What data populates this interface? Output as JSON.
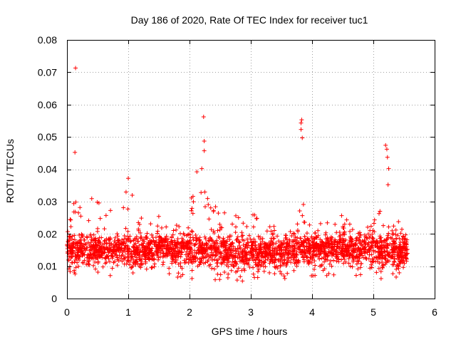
{
  "chart_data": {
    "type": "scatter",
    "title": "Day 186 of 2020, Rate Of TEC Index for receiver tuc1",
    "xlabel": "GPS time / hours",
    "ylabel": "ROTI / TECUs",
    "xlim": [
      0,
      6
    ],
    "ylim": [
      0,
      0.08
    ],
    "grid": true,
    "marker": "+",
    "series_color": "#ff0000",
    "xticks": [
      0,
      1,
      2,
      3,
      4,
      5,
      6
    ],
    "xtick_labels": [
      "0",
      "1",
      "2",
      "3",
      "4",
      "5",
      "6"
    ],
    "yticks": [
      0,
      0.01,
      0.02,
      0.03,
      0.04,
      0.05,
      0.06,
      0.07,
      0.08
    ],
    "ytick_labels": [
      "0",
      "0.01",
      "0.02",
      "0.03",
      "0.04",
      "0.05",
      "0.06",
      "0.07",
      "0.08"
    ],
    "data_x_range": [
      0.0,
      5.56
    ],
    "outlier_points": [
      {
        "x": 0.14,
        "y": 0.0713
      },
      {
        "x": 0.13,
        "y": 0.0452
      },
      {
        "x": 2.23,
        "y": 0.0562
      },
      {
        "x": 2.24,
        "y": 0.0487
      },
      {
        "x": 2.24,
        "y": 0.0457
      },
      {
        "x": 2.2,
        "y": 0.0402
      },
      {
        "x": 3.83,
        "y": 0.0553
      },
      {
        "x": 3.82,
        "y": 0.0543
      },
      {
        "x": 3.82,
        "y": 0.0523
      },
      {
        "x": 3.84,
        "y": 0.0497
      },
      {
        "x": 5.2,
        "y": 0.0474
      },
      {
        "x": 5.22,
        "y": 0.0462
      },
      {
        "x": 5.23,
        "y": 0.0437
      },
      {
        "x": 5.25,
        "y": 0.0402
      },
      {
        "x": 1.0,
        "y": 0.0372
      },
      {
        "x": 2.12,
        "y": 0.0392
      },
      {
        "x": 5.24,
        "y": 0.0352
      }
    ],
    "envelope": [
      {
        "x": 0.0,
        "min": 0.008,
        "max": 0.022
      },
      {
        "x": 0.15,
        "min": 0.006,
        "max": 0.033
      },
      {
        "x": 0.3,
        "min": 0.006,
        "max": 0.024
      },
      {
        "x": 0.4,
        "min": 0.007,
        "max": 0.032
      },
      {
        "x": 0.6,
        "min": 0.007,
        "max": 0.028
      },
      {
        "x": 0.8,
        "min": 0.006,
        "max": 0.029
      },
      {
        "x": 1.0,
        "min": 0.005,
        "max": 0.036
      },
      {
        "x": 1.2,
        "min": 0.006,
        "max": 0.026
      },
      {
        "x": 1.45,
        "min": 0.007,
        "max": 0.022
      },
      {
        "x": 1.5,
        "min": 0.008,
        "max": 0.027
      },
      {
        "x": 1.7,
        "min": 0.007,
        "max": 0.021
      },
      {
        "x": 1.9,
        "min": 0.006,
        "max": 0.027
      },
      {
        "x": 2.1,
        "min": 0.006,
        "max": 0.035
      },
      {
        "x": 2.3,
        "min": 0.006,
        "max": 0.034
      },
      {
        "x": 2.5,
        "min": 0.005,
        "max": 0.029
      },
      {
        "x": 2.7,
        "min": 0.004,
        "max": 0.026
      },
      {
        "x": 2.9,
        "min": 0.005,
        "max": 0.028
      },
      {
        "x": 3.1,
        "min": 0.005,
        "max": 0.026
      },
      {
        "x": 3.3,
        "min": 0.006,
        "max": 0.024
      },
      {
        "x": 3.5,
        "min": 0.006,
        "max": 0.02
      },
      {
        "x": 3.7,
        "min": 0.006,
        "max": 0.022
      },
      {
        "x": 3.85,
        "min": 0.007,
        "max": 0.03
      },
      {
        "x": 4.0,
        "min": 0.007,
        "max": 0.024
      },
      {
        "x": 4.2,
        "min": 0.007,
        "max": 0.023
      },
      {
        "x": 4.4,
        "min": 0.007,
        "max": 0.028
      },
      {
        "x": 4.6,
        "min": 0.007,
        "max": 0.024
      },
      {
        "x": 4.8,
        "min": 0.007,
        "max": 0.023
      },
      {
        "x": 5.0,
        "min": 0.007,
        "max": 0.025
      },
      {
        "x": 5.15,
        "min": 0.006,
        "max": 0.032
      },
      {
        "x": 5.3,
        "min": 0.006,
        "max": 0.025
      },
      {
        "x": 5.45,
        "min": 0.006,
        "max": 0.024
      },
      {
        "x": 5.56,
        "min": 0.007,
        "max": 0.022
      }
    ]
  }
}
